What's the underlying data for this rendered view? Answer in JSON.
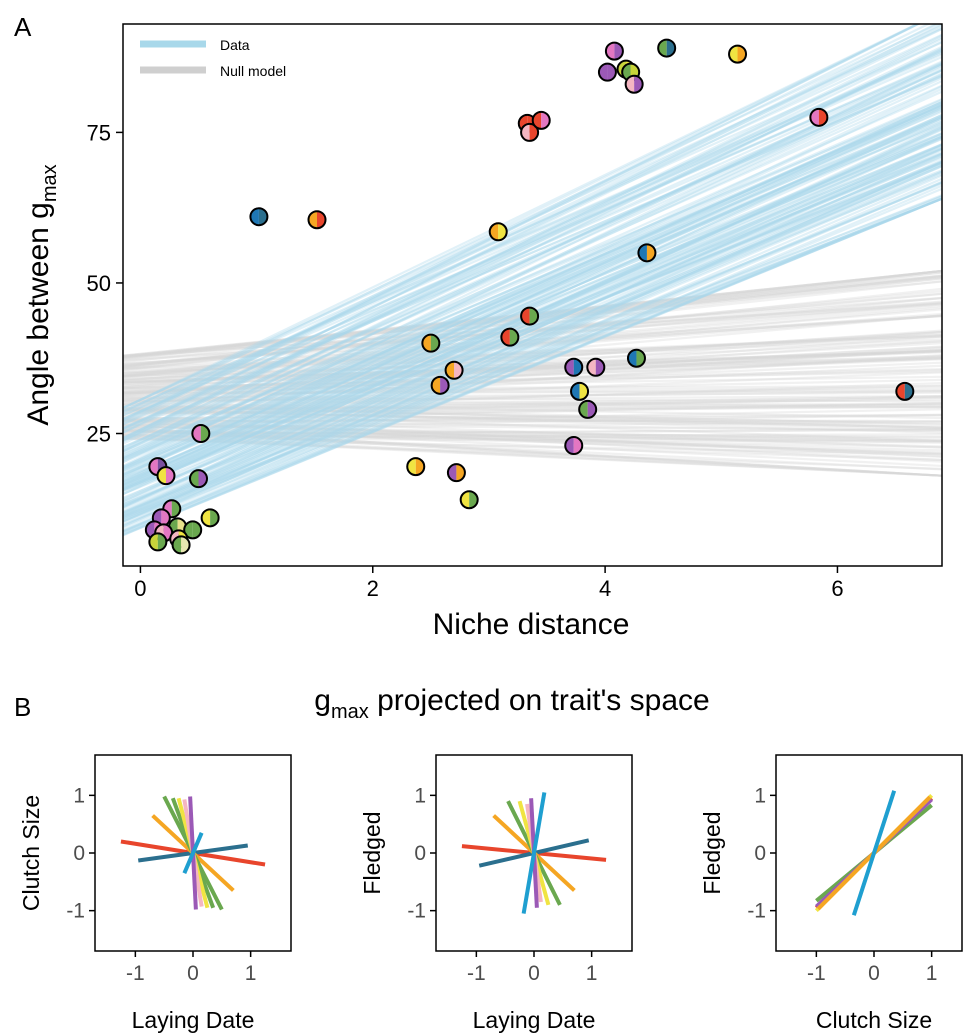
{
  "panel_labels": {
    "a": "A",
    "b": "B"
  },
  "panel_a": {
    "ylabel_main": "Angle between g",
    "ylabel_sub": "max",
    "xlabel": "Niche distance",
    "legend": [
      {
        "label": "Data",
        "color": "#a8d8ea"
      },
      {
        "label": "Null model",
        "color": "#cfcfcf"
      }
    ]
  },
  "panel_b": {
    "title_main": "g",
    "title_sub": "max",
    "title_rest": " projected on trait's space"
  },
  "chart_data": [
    {
      "type": "scatter",
      "xlabel": "Niche distance",
      "ylabel": "Angle between gmax",
      "xlim": [
        -0.15,
        6.9
      ],
      "ylim": [
        3,
        93
      ],
      "x_ticks": [
        0,
        2,
        4,
        6
      ],
      "y_ticks": [
        25,
        50,
        75
      ],
      "grid": false,
      "legend_position": "top-left",
      "bands": [
        {
          "name": "Data",
          "color": "#a8d8ea",
          "lines": 160,
          "x_start": -0.15,
          "x_end": 6.9,
          "y_start_range": [
            8,
            30
          ],
          "y_end_range": [
            64,
            95
          ]
        },
        {
          "name": "Null model",
          "color": "#d6d6d6",
          "lines": 160,
          "x_start": -0.15,
          "x_end": 6.9,
          "y_start_range": [
            24,
            38
          ],
          "y_end_range": [
            18,
            52
          ]
        }
      ],
      "points": [
        {
          "x": 0.15,
          "y": 19.5,
          "c1": "#e377c2",
          "c2": "#7b4f9e"
        },
        {
          "x": 0.22,
          "y": 18,
          "c1": "#f0e442",
          "c2": "#e377c2"
        },
        {
          "x": 0.52,
          "y": 25,
          "c1": "#e377c2",
          "c2": "#6aa84f"
        },
        {
          "x": 0.5,
          "y": 17.5,
          "c1": "#6aa84f",
          "c2": "#9b59b6"
        },
        {
          "x": 0.27,
          "y": 12.5,
          "c1": "#e377c2",
          "c2": "#6aa84f"
        },
        {
          "x": 0.6,
          "y": 11,
          "c1": "#f0e442",
          "c2": "#6aa84f"
        },
        {
          "x": 0.18,
          "y": 11,
          "c1": "#9b59b6",
          "c2": "#e377c2"
        },
        {
          "x": 0.32,
          "y": 9.5,
          "c1": "#6aa84f",
          "c2": "#e6e08a"
        },
        {
          "x": 0.45,
          "y": 9,
          "c1": "#6aa84f",
          "c2": "#6aa84f"
        },
        {
          "x": 0.12,
          "y": 9,
          "c1": "#9b59b6",
          "c2": "#e377c2"
        },
        {
          "x": 0.2,
          "y": 8.5,
          "c1": "#f4b6c2",
          "c2": "#e377c2"
        },
        {
          "x": 0.15,
          "y": 7,
          "c1": "#c8d43a",
          "c2": "#6aa84f"
        },
        {
          "x": 0.33,
          "y": 7.5,
          "c1": "#f4b6c2",
          "c2": "#f0e442"
        },
        {
          "x": 0.35,
          "y": 6.5,
          "c1": "#6aa84f",
          "c2": "#e6e6b0"
        },
        {
          "x": 1.02,
          "y": 61,
          "c1": "#1f77b4",
          "c2": "#2b6f8e"
        },
        {
          "x": 1.52,
          "y": 60.5,
          "c1": "#f5a623",
          "c2": "#e8452c"
        },
        {
          "x": 2.37,
          "y": 19.5,
          "c1": "#f0e442",
          "c2": "#f5a623"
        },
        {
          "x": 2.5,
          "y": 40,
          "c1": "#f5a623",
          "c2": "#6aa84f"
        },
        {
          "x": 2.58,
          "y": 33,
          "c1": "#f5a623",
          "c2": "#9b59b6"
        },
        {
          "x": 2.7,
          "y": 35.5,
          "c1": "#f5a623",
          "c2": "#f4b6c2"
        },
        {
          "x": 2.72,
          "y": 18.5,
          "c1": "#9b59b6",
          "c2": "#f5a623"
        },
        {
          "x": 2.83,
          "y": 14,
          "c1": "#f0e442",
          "c2": "#6aa84f"
        },
        {
          "x": 3.08,
          "y": 58.5,
          "c1": "#f5a623",
          "c2": "#f0e442"
        },
        {
          "x": 3.18,
          "y": 41,
          "c1": "#e8452c",
          "c2": "#6aa84f"
        },
        {
          "x": 3.33,
          "y": 76.5,
          "c1": "#e8452c",
          "c2": "#e8452c"
        },
        {
          "x": 3.35,
          "y": 75,
          "c1": "#f4b6c2",
          "c2": "#e8452c"
        },
        {
          "x": 3.35,
          "y": 44.5,
          "c1": "#e8452c",
          "c2": "#6aa84f"
        },
        {
          "x": 3.45,
          "y": 77,
          "c1": "#e8452c",
          "c2": "#e377c2"
        },
        {
          "x": 3.73,
          "y": 36,
          "c1": "#9b59b6",
          "c2": "#1f77b4"
        },
        {
          "x": 3.73,
          "y": 23,
          "c1": "#9b59b6",
          "c2": "#e377c2"
        },
        {
          "x": 3.78,
          "y": 32,
          "c1": "#1f77b4",
          "c2": "#f0e442"
        },
        {
          "x": 3.85,
          "y": 29,
          "c1": "#6aa84f",
          "c2": "#9b59b6"
        },
        {
          "x": 3.92,
          "y": 36,
          "c1": "#f4b6c2",
          "c2": "#9b59b6"
        },
        {
          "x": 4.02,
          "y": 85,
          "c1": "#9b59b6",
          "c2": "#9b59b6"
        },
        {
          "x": 4.08,
          "y": 88.5,
          "c1": "#e377c2",
          "c2": "#9b59b6"
        },
        {
          "x": 4.18,
          "y": 85.5,
          "c1": "#c8d43a",
          "c2": "#f0e442"
        },
        {
          "x": 4.22,
          "y": 85,
          "c1": "#6aa84f",
          "c2": "#c8d43a"
        },
        {
          "x": 4.25,
          "y": 83,
          "c1": "#f4b6c2",
          "c2": "#9b59b6"
        },
        {
          "x": 4.27,
          "y": 37.5,
          "c1": "#1f77b4",
          "c2": "#6aa84f"
        },
        {
          "x": 4.36,
          "y": 55,
          "c1": "#1f77b4",
          "c2": "#f5a623"
        },
        {
          "x": 4.53,
          "y": 89,
          "c1": "#6aa84f",
          "c2": "#2b6f8e"
        },
        {
          "x": 5.14,
          "y": 88,
          "c1": "#f0e442",
          "c2": "#f5a623"
        },
        {
          "x": 5.84,
          "y": 77.5,
          "c1": "#e377c2",
          "c2": "#e8452c"
        },
        {
          "x": 6.58,
          "y": 32,
          "c1": "#e8452c",
          "c2": "#2b6f8e"
        }
      ]
    },
    {
      "type": "line",
      "xlabel": "Laying Date",
      "ylabel": "Clutch Size",
      "xlim": [
        -1.7,
        1.7
      ],
      "ylim": [
        -1.7,
        1.7
      ],
      "x_ticks": [
        -1,
        0,
        1
      ],
      "y_ticks": [
        -1,
        0,
        1
      ],
      "grid": false,
      "series": [
        {
          "color": "#e8452c",
          "values": [
            [
              -1.25,
              0.2
            ],
            [
              1.25,
              -0.2
            ]
          ]
        },
        {
          "color": "#2b6f8e",
          "values": [
            [
              -0.95,
              -0.13
            ],
            [
              0.95,
              0.13
            ]
          ]
        },
        {
          "color": "#f5a623",
          "values": [
            [
              -0.7,
              0.65
            ],
            [
              0.7,
              -0.65
            ]
          ]
        },
        {
          "color": "#6aa84f",
          "values": [
            [
              -0.5,
              0.98
            ],
            [
              0.5,
              -0.98
            ]
          ]
        },
        {
          "color": "#6aa84f",
          "values": [
            [
              -0.35,
              0.95
            ],
            [
              0.35,
              -0.95
            ]
          ]
        },
        {
          "color": "#f0e442",
          "values": [
            [
              -0.25,
              0.95
            ],
            [
              0.25,
              -0.95
            ]
          ]
        },
        {
          "color": "#f4b6c2",
          "values": [
            [
              -0.15,
              0.93
            ],
            [
              0.15,
              -0.93
            ]
          ]
        },
        {
          "color": "#9b59b6",
          "values": [
            [
              -0.05,
              0.98
            ],
            [
              0.05,
              -0.98
            ]
          ]
        },
        {
          "color": "#1f9fd0",
          "values": [
            [
              -0.15,
              -0.35
            ],
            [
              0.15,
              0.35
            ]
          ]
        }
      ]
    },
    {
      "type": "line",
      "xlabel": "Laying Date",
      "ylabel": "Fledged",
      "xlim": [
        -1.7,
        1.7
      ],
      "ylim": [
        -1.7,
        1.7
      ],
      "x_ticks": [
        -1,
        0,
        1
      ],
      "y_ticks": [
        -1,
        0,
        1
      ],
      "grid": false,
      "series": [
        {
          "color": "#e8452c",
          "values": [
            [
              -1.25,
              0.12
            ],
            [
              1.25,
              -0.12
            ]
          ]
        },
        {
          "color": "#2b6f8e",
          "values": [
            [
              -0.95,
              -0.22
            ],
            [
              0.95,
              0.22
            ]
          ]
        },
        {
          "color": "#f5a623",
          "values": [
            [
              -0.7,
              0.65
            ],
            [
              0.7,
              -0.65
            ]
          ]
        },
        {
          "color": "#6aa84f",
          "values": [
            [
              -0.45,
              0.9
            ],
            [
              0.45,
              -0.9
            ]
          ]
        },
        {
          "color": "#f0e442",
          "values": [
            [
              -0.25,
              0.9
            ],
            [
              0.25,
              -0.9
            ]
          ]
        },
        {
          "color": "#f4b6c2",
          "values": [
            [
              -0.12,
              0.85
            ],
            [
              0.12,
              -0.85
            ]
          ]
        },
        {
          "color": "#9b59b6",
          "values": [
            [
              -0.05,
              0.95
            ],
            [
              0.05,
              -0.95
            ]
          ]
        },
        {
          "color": "#1f9fd0",
          "values": [
            [
              -0.18,
              -1.05
            ],
            [
              0.18,
              1.05
            ]
          ]
        }
      ]
    },
    {
      "type": "line",
      "xlabel": "Clutch Size",
      "ylabel": "Fledged",
      "xlim": [
        -1.7,
        1.7
      ],
      "ylim": [
        -1.7,
        1.7
      ],
      "x_ticks": [
        -1,
        0,
        1
      ],
      "y_ticks": [
        -1,
        0,
        1
      ],
      "grid": false,
      "series": [
        {
          "color": "#6aa84f",
          "values": [
            [
              -1.0,
              -0.83
            ],
            [
              1.0,
              0.83
            ]
          ]
        },
        {
          "color": "#e8452c",
          "values": [
            [
              -1.0,
              -0.95
            ],
            [
              1.0,
              0.95
            ]
          ]
        },
        {
          "color": "#9b59b6",
          "values": [
            [
              -1.0,
              -0.93
            ],
            [
              1.0,
              0.93
            ]
          ]
        },
        {
          "color": "#f0e442",
          "values": [
            [
              -1.0,
              -1.0
            ],
            [
              1.0,
              1.0
            ]
          ]
        },
        {
          "color": "#f5a623",
          "values": [
            [
              -0.97,
              -0.97
            ],
            [
              0.97,
              0.97
            ]
          ]
        },
        {
          "color": "#1f9fd0",
          "values": [
            [
              -0.35,
              -1.08
            ],
            [
              0.35,
              1.08
            ]
          ]
        }
      ]
    }
  ]
}
